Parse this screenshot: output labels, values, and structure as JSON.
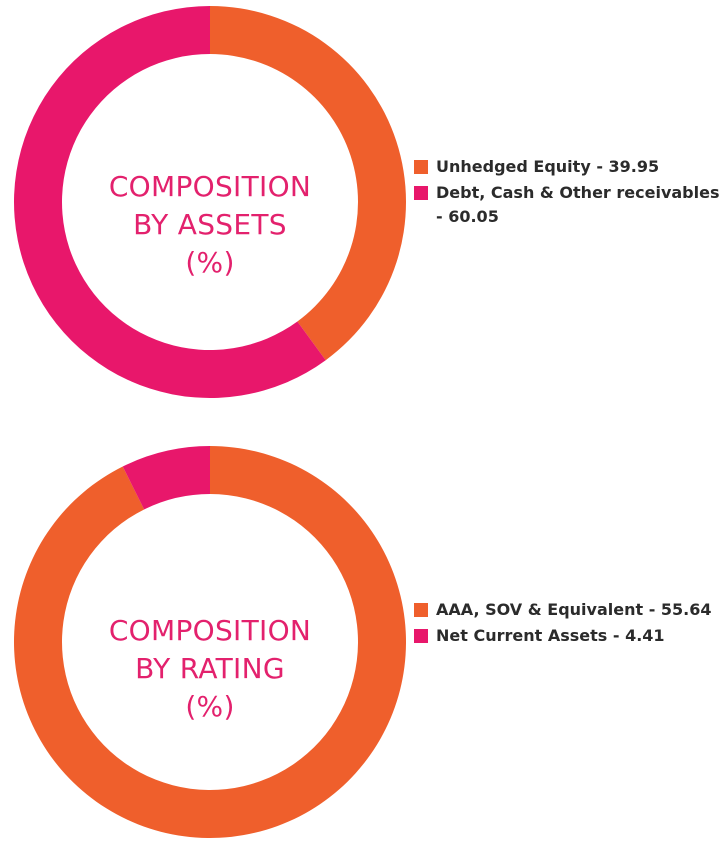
{
  "colors": {
    "orange": "#ef5f2c",
    "pink": "#e8176b",
    "title": "#e3216d",
    "legend_text": "#2b2b2b"
  },
  "chart_data": [
    {
      "type": "pie",
      "style": "donut",
      "title_lines": [
        "COMPOSITION",
        "BY ASSETS",
        "(%)"
      ],
      "slices": [
        {
          "label": "Unhedged Equity - 39.95",
          "value": 39.95,
          "color": "#ef5f2c"
        },
        {
          "label": "Debt, Cash & Other receivables - 60.05",
          "value": 60.05,
          "color": "#e8176b"
        }
      ],
      "legend_placement": "right"
    },
    {
      "type": "pie",
      "style": "donut",
      "title_lines": [
        "COMPOSITION",
        "BY RATING",
        "(%)"
      ],
      "slices": [
        {
          "label": "AAA, SOV & Equivalent - 55.64",
          "value": 55.64,
          "color": "#ef5f2c"
        },
        {
          "label": "Net Current Assets - 4.41",
          "value": 4.41,
          "color": "#e8176b"
        }
      ],
      "legend_placement": "right"
    }
  ]
}
